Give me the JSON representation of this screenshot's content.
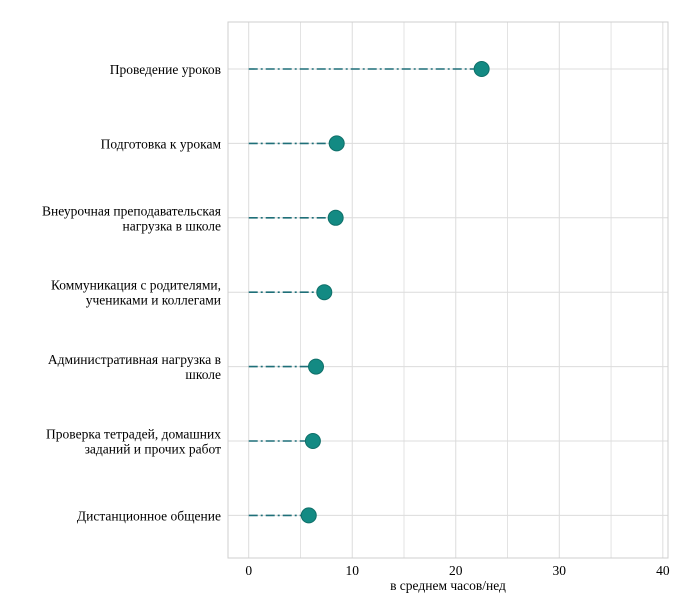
{
  "chart_data": {
    "type": "lollipop",
    "title": "",
    "xlabel": "в среднем часов/нед",
    "ylabel": "",
    "xlim": [
      -2,
      40.5
    ],
    "xticks": [
      0,
      10,
      20,
      30,
      40
    ],
    "grid": true,
    "colors": {
      "point": "#138a83",
      "point_stroke": "#0f6f69",
      "stem": "#1f6f78",
      "grid": "#dcdcdc",
      "frame": "#cfcfcf"
    },
    "categories": [
      [
        "Проведение уроков"
      ],
      [
        "Подготовка к урокам"
      ],
      [
        "Внеурочная преподавательская",
        "нагрузка в школе"
      ],
      [
        "Коммуникация с родителями,",
        "учениками и коллегами"
      ],
      [
        "Административная нагрузка в",
        "школе"
      ],
      [
        "Проверка тетрадей, домашних",
        "заданий и прочих работ"
      ],
      [
        "Дистанционное общение"
      ]
    ],
    "values": [
      22.5,
      8.5,
      8.4,
      7.3,
      6.5,
      6.2,
      5.8
    ]
  }
}
